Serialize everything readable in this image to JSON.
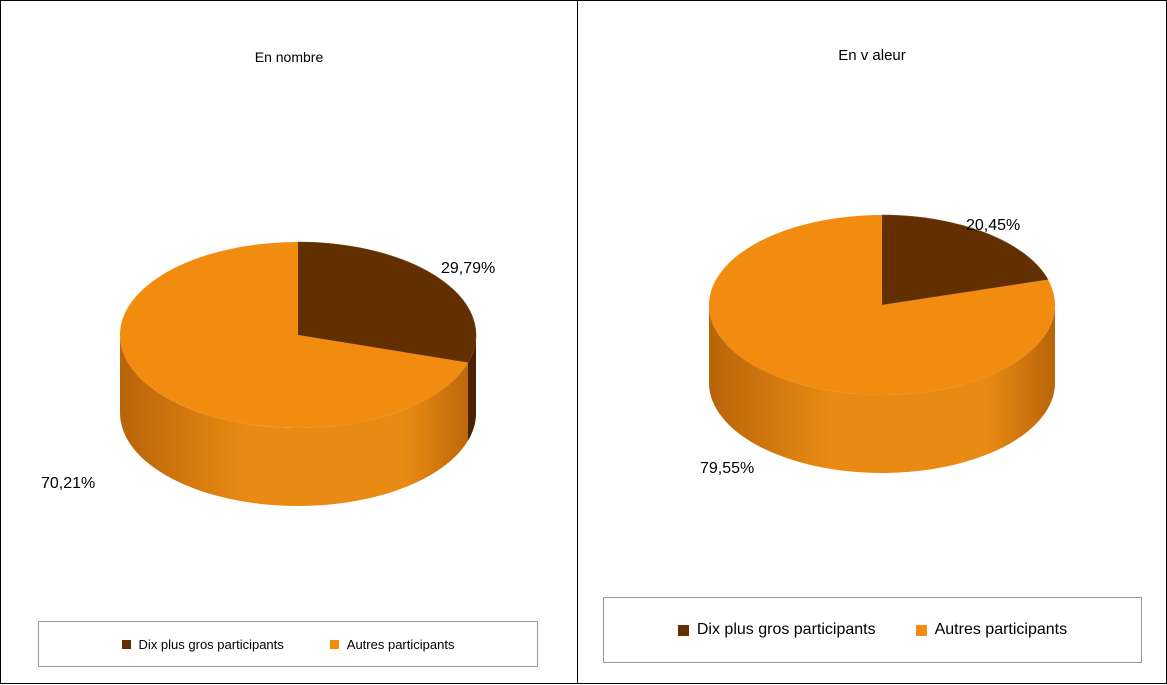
{
  "colors": {
    "top": "#f28c10",
    "top_dark": "#622f00",
    "side_light": "#e98a12",
    "side_shade": "#b8640a",
    "side_dark_slice": "#4a2200"
  },
  "legend": [
    {
      "label": "Dix plus gros participants",
      "color": "#622f00"
    },
    {
      "label": "Autres participants",
      "color": "#f28c10"
    }
  ],
  "chart_data": [
    {
      "type": "pie",
      "title": "En nombre",
      "slices": [
        {
          "name": "Dix plus gros participants",
          "value": 29.79,
          "label": "29,79%"
        },
        {
          "name": "Autres participants",
          "value": 70.21,
          "label": "70,21%"
        }
      ]
    },
    {
      "type": "pie",
      "title": "En v aleur",
      "slices": [
        {
          "name": "Dix plus gros participants",
          "value": 20.45,
          "label": "20,45%"
        },
        {
          "name": "Autres participants",
          "value": 79.55,
          "label": "79,55%"
        }
      ]
    }
  ]
}
